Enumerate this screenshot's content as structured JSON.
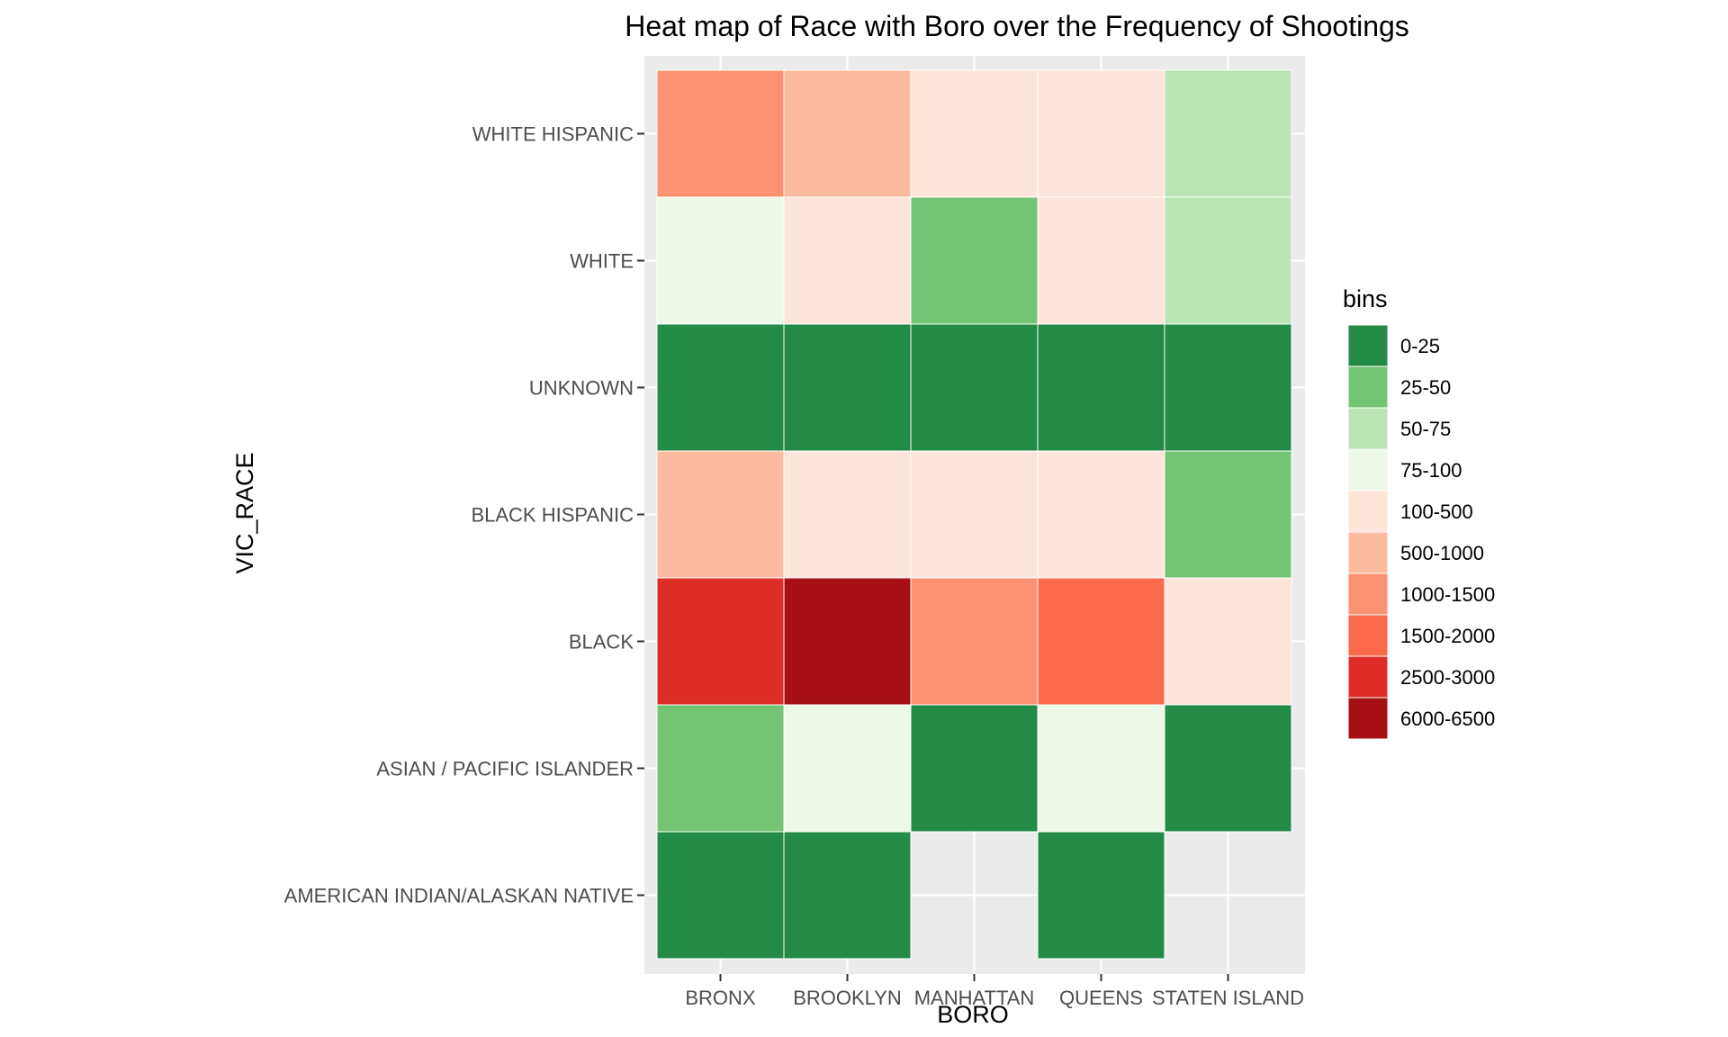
{
  "chart_data": {
    "type": "heatmap",
    "title": "Heat map of Race with Boro over the Frequency of Shootings",
    "xlabel": "BORO",
    "ylabel": "VIC_RACE",
    "x_categories": [
      "BRONX",
      "BROOKLYN",
      "MANHATTAN",
      "QUEENS",
      "STATEN ISLAND"
    ],
    "y_categories": [
      "AMERICAN INDIAN/ALASKAN NATIVE",
      "ASIAN / PACIFIC ISLANDER",
      "BLACK",
      "BLACK HISPANIC",
      "UNKNOWN",
      "WHITE",
      "WHITE HISPANIC"
    ],
    "cells": [
      {
        "x": "BRONX",
        "y": "WHITE HISPANIC",
        "bin": "1000-1500"
      },
      {
        "x": "BROOKLYN",
        "y": "WHITE HISPANIC",
        "bin": "500-1000"
      },
      {
        "x": "MANHATTAN",
        "y": "WHITE HISPANIC",
        "bin": "100-500"
      },
      {
        "x": "QUEENS",
        "y": "WHITE HISPANIC",
        "bin": "100-500"
      },
      {
        "x": "STATEN ISLAND",
        "y": "WHITE HISPANIC",
        "bin": "50-75"
      },
      {
        "x": "BRONX",
        "y": "WHITE",
        "bin": "75-100"
      },
      {
        "x": "BROOKLYN",
        "y": "WHITE",
        "bin": "100-500"
      },
      {
        "x": "MANHATTAN",
        "y": "WHITE",
        "bin": "25-50"
      },
      {
        "x": "QUEENS",
        "y": "WHITE",
        "bin": "100-500"
      },
      {
        "x": "STATEN ISLAND",
        "y": "WHITE",
        "bin": "50-75"
      },
      {
        "x": "BRONX",
        "y": "UNKNOWN",
        "bin": "0-25"
      },
      {
        "x": "BROOKLYN",
        "y": "UNKNOWN",
        "bin": "0-25"
      },
      {
        "x": "MANHATTAN",
        "y": "UNKNOWN",
        "bin": "0-25"
      },
      {
        "x": "QUEENS",
        "y": "UNKNOWN",
        "bin": "0-25"
      },
      {
        "x": "STATEN ISLAND",
        "y": "UNKNOWN",
        "bin": "0-25"
      },
      {
        "x": "BRONX",
        "y": "BLACK HISPANIC",
        "bin": "500-1000"
      },
      {
        "x": "BROOKLYN",
        "y": "BLACK HISPANIC",
        "bin": "100-500"
      },
      {
        "x": "MANHATTAN",
        "y": "BLACK HISPANIC",
        "bin": "100-500"
      },
      {
        "x": "QUEENS",
        "y": "BLACK HISPANIC",
        "bin": "100-500"
      },
      {
        "x": "STATEN ISLAND",
        "y": "BLACK HISPANIC",
        "bin": "25-50"
      },
      {
        "x": "BRONX",
        "y": "BLACK",
        "bin": "2500-3000"
      },
      {
        "x": "BROOKLYN",
        "y": "BLACK",
        "bin": "6000-6500"
      },
      {
        "x": "MANHATTAN",
        "y": "BLACK",
        "bin": "1000-1500"
      },
      {
        "x": "QUEENS",
        "y": "BLACK",
        "bin": "1500-2000"
      },
      {
        "x": "STATEN ISLAND",
        "y": "BLACK",
        "bin": "100-500"
      },
      {
        "x": "BRONX",
        "y": "ASIAN / PACIFIC ISLANDER",
        "bin": "25-50"
      },
      {
        "x": "BROOKLYN",
        "y": "ASIAN / PACIFIC ISLANDER",
        "bin": "75-100"
      },
      {
        "x": "MANHATTAN",
        "y": "ASIAN / PACIFIC ISLANDER",
        "bin": "0-25"
      },
      {
        "x": "QUEENS",
        "y": "ASIAN / PACIFIC ISLANDER",
        "bin": "75-100"
      },
      {
        "x": "STATEN ISLAND",
        "y": "ASIAN / PACIFIC ISLANDER",
        "bin": "0-25"
      },
      {
        "x": "BRONX",
        "y": "AMERICAN INDIAN/ALASKAN NATIVE",
        "bin": "0-25"
      },
      {
        "x": "BROOKLYN",
        "y": "AMERICAN INDIAN/ALASKAN NATIVE",
        "bin": "0-25"
      },
      {
        "x": "QUEENS",
        "y": "AMERICAN INDIAN/ALASKAN NATIVE",
        "bin": "0-25"
      }
    ],
    "legend": {
      "title": "bins",
      "position": "right",
      "items": [
        {
          "label": "0-25",
          "color": "#238b45"
        },
        {
          "label": "25-50",
          "color": "#74c476"
        },
        {
          "label": "50-75",
          "color": "#bae4b3"
        },
        {
          "label": "75-100",
          "color": "#edf8e9"
        },
        {
          "label": "100-500",
          "color": "#fee5d9"
        },
        {
          "label": "500-1000",
          "color": "#fcbba1"
        },
        {
          "label": "1000-1500",
          "color": "#fc9272"
        },
        {
          "label": "1500-2000",
          "color": "#fb6a4a"
        },
        {
          "label": "2500-3000",
          "color": "#de2d26"
        },
        {
          "label": "6000-6500",
          "color": "#a50f15"
        }
      ]
    },
    "panel_background": "#ebebeb",
    "grid": true
  }
}
